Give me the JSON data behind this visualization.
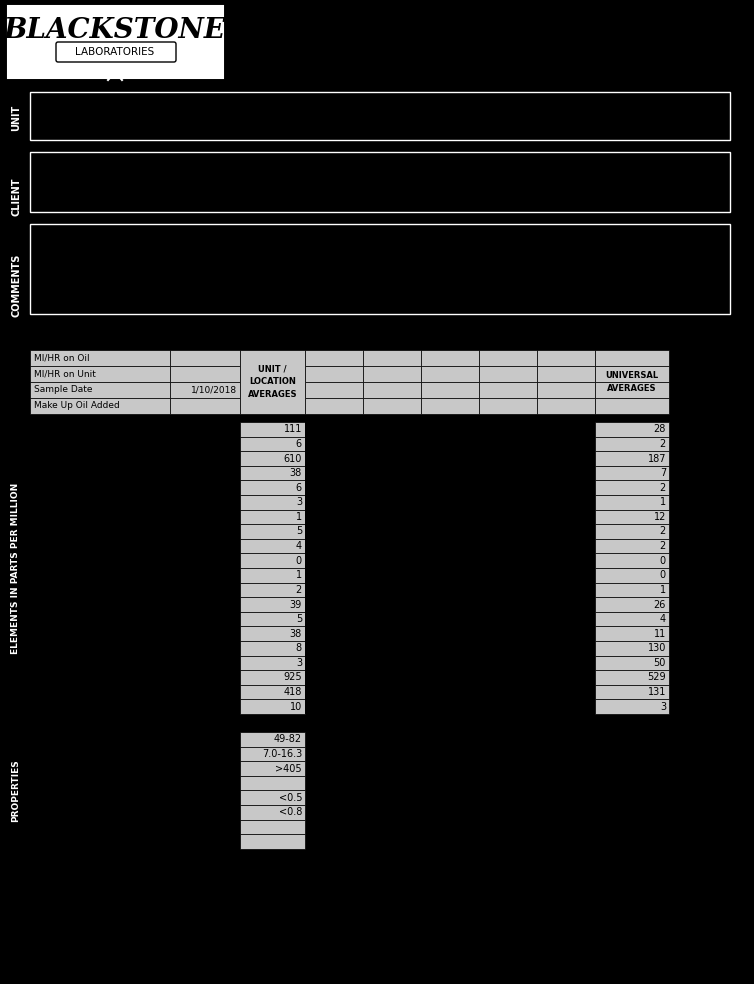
{
  "bg_color": "#000000",
  "cell_color": "#c8c8c8",
  "text_color": "#000000",
  "white": "#ffffff",
  "info_labels": [
    "MI/HR on Oil",
    "MI/HR on Unit",
    "Sample Date",
    "Make Up Oil Added"
  ],
  "info_values": [
    "",
    "",
    "1/10/2018",
    ""
  ],
  "elements_unit": [
    "111",
    "6",
    "610",
    "38",
    "6",
    "3",
    "1",
    "5",
    "4",
    "0",
    "1",
    "2",
    "39",
    "5",
    "38",
    "8",
    "3",
    "925",
    "418",
    "10"
  ],
  "elements_universal": [
    "28",
    "2",
    "187",
    "7",
    "2",
    "1",
    "12",
    "2",
    "2",
    "0",
    "0",
    "1",
    "26",
    "4",
    "11",
    "130",
    "50",
    "529",
    "131",
    "3"
  ],
  "properties_unit": [
    "49-82",
    "7.0-16.3",
    ">405",
    "",
    "<0.5",
    "<0.8",
    "",
    ""
  ],
  "n_prop": 8,
  "sidebar_unit": "UNIT",
  "sidebar_client": "CLIENT",
  "sidebar_comments": "COMMENTS",
  "sidebar_elements": "ELEMENTS IN PARTS PER MILLION",
  "sidebar_properties": "PROPERTIES",
  "fig_width": 7.54,
  "fig_height": 9.84,
  "dpi": 100
}
